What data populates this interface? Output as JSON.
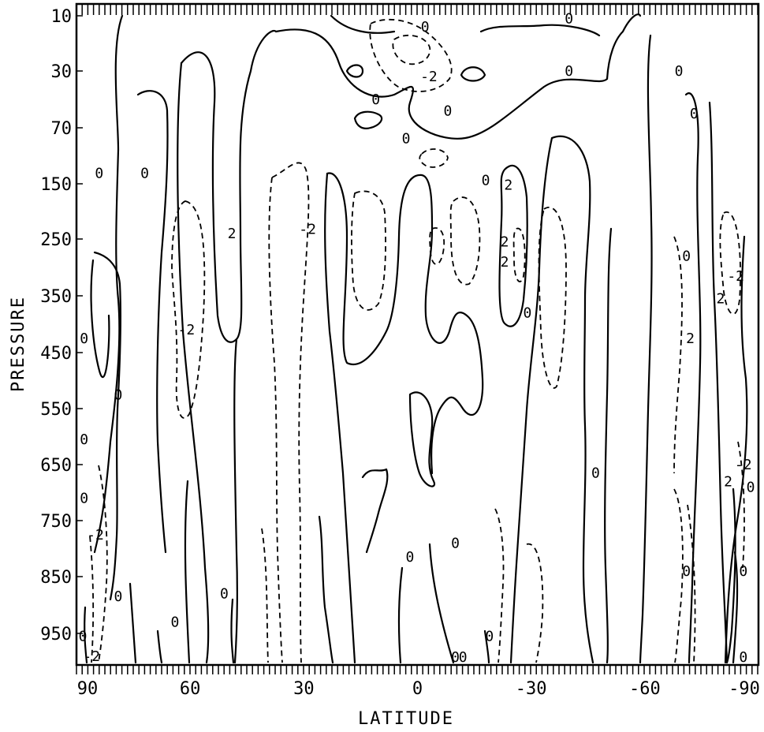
{
  "chart_data": {
    "type": "contour",
    "title": "",
    "xlabel": "LATITUDE",
    "ylabel": "PRESSURE",
    "xlim": [
      90,
      -90
    ],
    "ylim": [
      10,
      1000
    ],
    "x_ticks": [
      "90",
      "60",
      "30",
      "0",
      "-30",
      "-60",
      "-90"
    ],
    "y_ticks": [
      "10",
      "30",
      "70",
      "150",
      "250",
      "350",
      "450",
      "550",
      "650",
      "750",
      "850",
      "950"
    ],
    "contour_levels": [
      "-2",
      "0",
      "2"
    ],
    "negative_contours_dashed": true,
    "contour_labels": [
      {
        "text": "0",
        "lat": 84,
        "p": 135
      },
      {
        "text": "0",
        "lat": 72,
        "p": 135
      },
      {
        "text": "0",
        "lat": 11,
        "p": 50
      },
      {
        "text": "0",
        "lat": 3,
        "p": 85
      },
      {
        "text": "0",
        "lat": -2,
        "p": 14
      },
      {
        "text": "-2",
        "lat": -3,
        "p": 34
      },
      {
        "text": "0",
        "lat": -8,
        "p": 58
      },
      {
        "text": "0",
        "lat": -18,
        "p": 145
      },
      {
        "text": "2",
        "lat": -24,
        "p": 152
      },
      {
        "text": "0",
        "lat": -40,
        "p": 30
      },
      {
        "text": "0",
        "lat": -40,
        "p": 11
      },
      {
        "text": "0",
        "lat": -69,
        "p": 30
      },
      {
        "text": "0",
        "lat": -73,
        "p": 60
      },
      {
        "text": "2",
        "lat": 49,
        "p": 240
      },
      {
        "text": "-2",
        "lat": 29,
        "p": 232
      },
      {
        "text": "-2",
        "lat": 61,
        "p": 410
      },
      {
        "text": "2",
        "lat": -23,
        "p": 255
      },
      {
        "text": "2",
        "lat": -23,
        "p": 290
      },
      {
        "text": "0",
        "lat": -29,
        "p": 380
      },
      {
        "text": "0",
        "lat": -71,
        "p": 280
      },
      {
        "text": "-2",
        "lat": -84,
        "p": 315
      },
      {
        "text": "2",
        "lat": -80,
        "p": 355
      },
      {
        "text": "2",
        "lat": -72,
        "p": 425
      },
      {
        "text": "0",
        "lat": 88,
        "p": 425
      },
      {
        "text": "0",
        "lat": 79,
        "p": 525
      },
      {
        "text": "0",
        "lat": 88,
        "p": 605
      },
      {
        "text": "0",
        "lat": 88,
        "p": 710
      },
      {
        "text": "-2",
        "lat": 85,
        "p": 775
      },
      {
        "text": "0",
        "lat": 79,
        "p": 885
      },
      {
        "text": "0",
        "lat": 64,
        "p": 930
      },
      {
        "text": "0",
        "lat": 51,
        "p": 880
      },
      {
        "text": "0",
        "lat": 89,
        "p": 955
      },
      {
        "text": "-2",
        "lat": 86,
        "p": 990
      },
      {
        "text": "0",
        "lat": 2,
        "p": 815
      },
      {
        "text": "0",
        "lat": -10,
        "p": 790
      },
      {
        "text": "0",
        "lat": -19,
        "p": 955
      },
      {
        "text": "0",
        "lat": -10,
        "p": 1000
      },
      {
        "text": "0",
        "lat": -12,
        "p": 1000
      },
      {
        "text": "0",
        "lat": -47,
        "p": 665
      },
      {
        "text": "2",
        "lat": -82,
        "p": 680
      },
      {
        "text": "-2",
        "lat": -86,
        "p": 650
      },
      {
        "text": "0",
        "lat": -88,
        "p": 690
      },
      {
        "text": "0",
        "lat": -71,
        "p": 840
      },
      {
        "text": "0",
        "lat": -86,
        "p": 840
      },
      {
        "text": "0",
        "lat": -86,
        "p": 995
      }
    ]
  }
}
